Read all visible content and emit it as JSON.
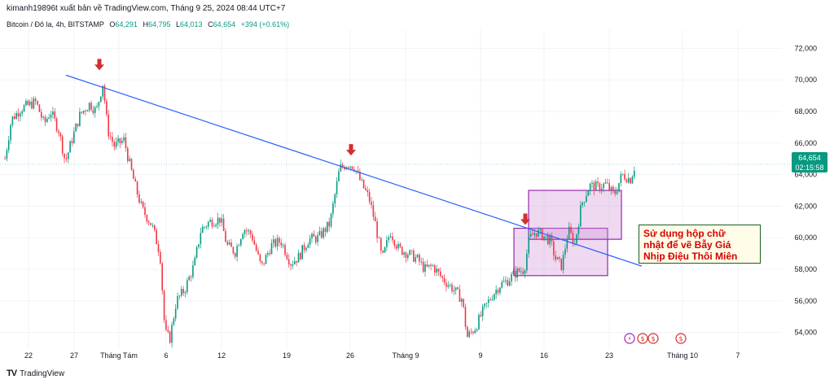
{
  "header": {
    "publisher_line": "kimanh19896t xuất bản về TradingView.com, Tháng 9 25, 2024 08:44 UTC+7"
  },
  "symbol": {
    "name": "Bitcoin / Đô la, 4h, BITSTAMP",
    "open_label": "O",
    "open": "64,291",
    "high_label": "H",
    "high": "64,795",
    "low_label": "L",
    "low": "64,013",
    "close_label": "C",
    "close": "64,654",
    "change": "+394 (+0.61%)"
  },
  "price_tag": {
    "price": "64,654",
    "countdown": "02:15:58"
  },
  "annotation": {
    "lines": [
      "Sử dụng hộp chữ",
      "nhật để vẽ Bẫy Giá",
      "Nhịp Điệu Thôi Miên"
    ]
  },
  "footer": {
    "brand": "TradingView"
  },
  "colors": {
    "up": "#089981",
    "down": "#f23645",
    "trendline": "#2962ff",
    "box_fill": "#ce93d8",
    "box_border": "#9c27b0",
    "arrow": "#d32f2f",
    "grid": "#f0f3fa",
    "axis_text": "#131722",
    "last_price_line": "#089981"
  },
  "chart_data": {
    "type": "candlestick",
    "symbol": "BITSTAMP:BTCUSD",
    "timeframe": "4h",
    "ylim": [
      53000,
      73000
    ],
    "y_ticks": [
      54000,
      56000,
      58000,
      60000,
      62000,
      64000,
      66000,
      68000,
      70000,
      72000
    ],
    "y_tick_labels": [
      "54,000",
      "56,000",
      "58,000",
      "60,000",
      "62,000",
      "64,000",
      "66,000",
      "68,000",
      "70,000",
      "72,000"
    ],
    "x_ticks": [
      "22",
      "27",
      "Tháng Tám",
      "6",
      "12",
      "19",
      "26",
      "Tháng 9",
      "9",
      "16",
      "23",
      "Tháng 10",
      "7"
    ],
    "last_price": 64654,
    "path": [
      [
        0,
        65000
      ],
      [
        8,
        67500
      ],
      [
        20,
        68200
      ],
      [
        38,
        68600
      ],
      [
        48,
        67200
      ],
      [
        56,
        68000
      ],
      [
        66,
        66800
      ],
      [
        74,
        64800
      ],
      [
        82,
        66200
      ],
      [
        92,
        67800
      ],
      [
        104,
        68500
      ],
      [
        112,
        68000
      ],
      [
        120,
        69800
      ],
      [
        126,
        66800
      ],
      [
        134,
        65800
      ],
      [
        146,
        66200
      ],
      [
        152,
        64800
      ],
      [
        160,
        63200
      ],
      [
        168,
        61800
      ],
      [
        180,
        60800
      ],
      [
        190,
        59000
      ],
      [
        196,
        54000
      ],
      [
        202,
        53600
      ],
      [
        210,
        56000
      ],
      [
        220,
        56700
      ],
      [
        232,
        58300
      ],
      [
        240,
        60500
      ],
      [
        250,
        61000
      ],
      [
        264,
        61200
      ],
      [
        272,
        59500
      ],
      [
        282,
        59100
      ],
      [
        292,
        60600
      ],
      [
        302,
        60200
      ],
      [
        314,
        58100
      ],
      [
        326,
        59500
      ],
      [
        338,
        59800
      ],
      [
        350,
        58400
      ],
      [
        360,
        58800
      ],
      [
        372,
        59900
      ],
      [
        384,
        60000
      ],
      [
        398,
        60900
      ],
      [
        410,
        64400
      ],
      [
        420,
        64700
      ],
      [
        428,
        64500
      ],
      [
        436,
        63500
      ],
      [
        446,
        62500
      ],
      [
        454,
        60800
      ],
      [
        462,
        58600
      ],
      [
        472,
        60400
      ],
      [
        482,
        59300
      ],
      [
        494,
        59000
      ],
      [
        506,
        58600
      ],
      [
        514,
        58000
      ],
      [
        524,
        58200
      ],
      [
        536,
        57400
      ],
      [
        548,
        56800
      ],
      [
        560,
        56100
      ],
      [
        566,
        53700
      ],
      [
        576,
        54300
      ],
      [
        586,
        55400
      ],
      [
        596,
        56300
      ],
      [
        606,
        57000
      ],
      [
        616,
        57300
      ],
      [
        626,
        57800
      ],
      [
        636,
        58000
      ],
      [
        642,
        59900
      ],
      [
        650,
        60400
      ],
      [
        660,
        60100
      ],
      [
        668,
        59800
      ],
      [
        674,
        58700
      ],
      [
        682,
        58200
      ],
      [
        690,
        60500
      ],
      [
        698,
        59600
      ],
      [
        706,
        62100
      ],
      [
        716,
        63300
      ],
      [
        726,
        63200
      ],
      [
        736,
        63400
      ],
      [
        746,
        62700
      ],
      [
        756,
        64000
      ],
      [
        766,
        63700
      ],
      [
        772,
        64654
      ]
    ],
    "annotations": {
      "trendline": {
        "from": {
          "x": "Jul 29",
          "y": 70300
        },
        "to": {
          "x": "Sep 26",
          "y": 58200
        }
      },
      "boxes": [
        {
          "name": "price-trap-box-lower",
          "y_top": 60600,
          "y_bottom": 57600
        },
        {
          "name": "price-trap-box-upper",
          "y_top": 63000,
          "y_bottom": 59900
        }
      ],
      "arrows": [
        {
          "name": "arrow-peak-1",
          "y": 70300
        },
        {
          "name": "arrow-peak-2",
          "y": 64900
        },
        {
          "name": "arrow-peak-3",
          "y": 60500
        }
      ]
    }
  }
}
